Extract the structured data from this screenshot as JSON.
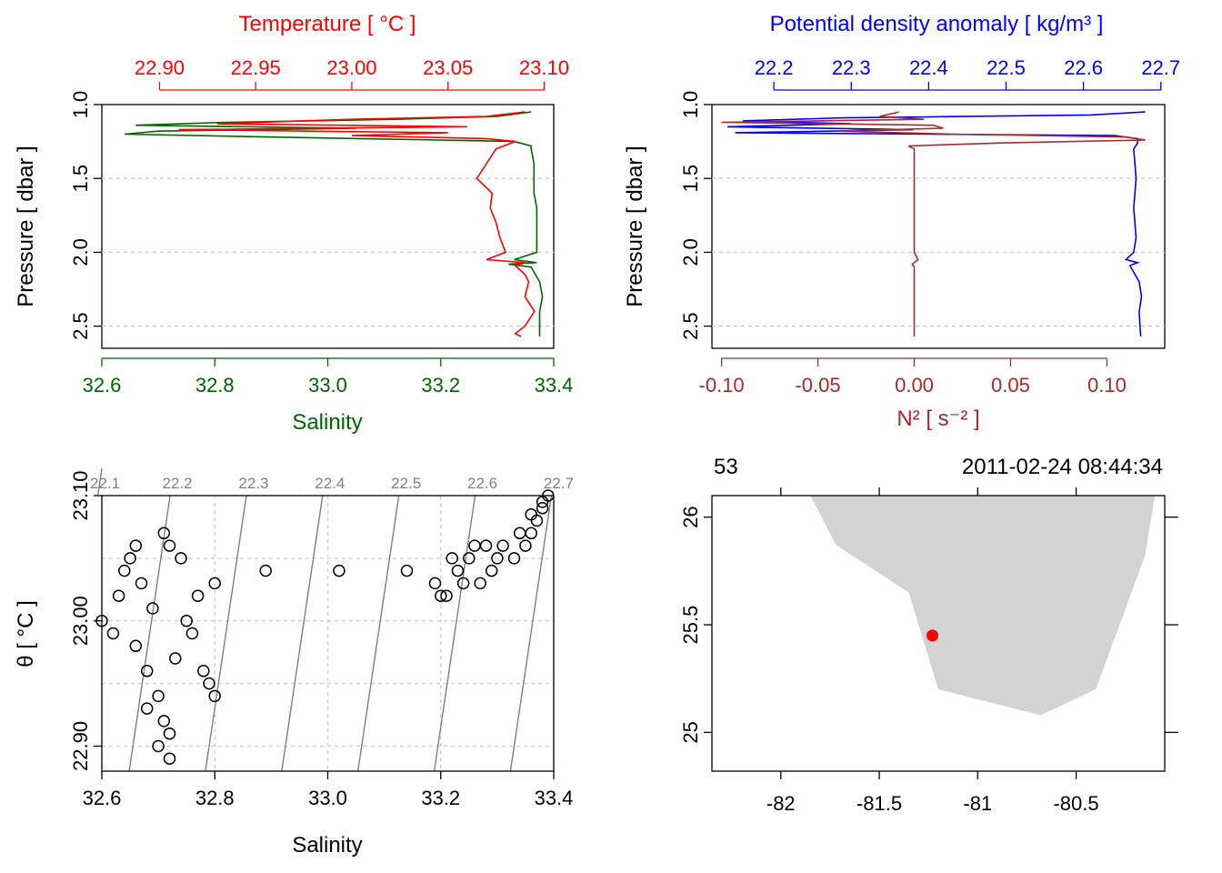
{
  "colors": {
    "salinity": "#006400",
    "temperature": "#ff0000",
    "density": "#0000ff",
    "n2": "#a52a2a",
    "axis": "#000000",
    "grid": "#cccccc",
    "isopycnal": "#808080",
    "land": "#d3d3d3",
    "station": "#ff0000"
  },
  "chart_data": [
    {
      "type": "line",
      "panel": "profile-ts",
      "x_bottom": {
        "label": "Salinity",
        "range": [
          32.6,
          33.4
        ],
        "ticks": [
          "32.6",
          "32.8",
          "33.0",
          "33.2",
          "33.4"
        ]
      },
      "x_top": {
        "label": "Temperature [ °C ]",
        "range": [
          22.87,
          23.105
        ],
        "ticks": [
          "22.90",
          "22.95",
          "23.00",
          "23.05",
          "23.10"
        ]
      },
      "y": {
        "label": "Pressure [ dbar ]",
        "range": [
          2.65,
          1.0
        ],
        "ticks": [
          "1.0",
          "1.5",
          "2.0",
          "2.5"
        ]
      },
      "series": [
        {
          "name": "Salinity",
          "axis": "bottom",
          "pressure": [
            1.05,
            1.08,
            1.1,
            1.12,
            1.14,
            1.16,
            1.18,
            1.2,
            1.22,
            1.24,
            1.25,
            1.28,
            1.3,
            1.4,
            1.5,
            1.6,
            1.7,
            1.8,
            1.9,
            2.0,
            2.05,
            2.07,
            2.08,
            2.1,
            2.2,
            2.3,
            2.4,
            2.5,
            2.57
          ],
          "values": [
            33.36,
            33.3,
            33.12,
            32.82,
            32.66,
            33.05,
            32.7,
            32.64,
            32.9,
            33.2,
            33.33,
            33.36,
            33.36,
            33.365,
            33.365,
            33.365,
            33.37,
            33.37,
            33.37,
            33.37,
            33.33,
            33.37,
            33.32,
            33.36,
            33.375,
            33.38,
            33.375,
            33.375,
            33.375
          ]
        },
        {
          "name": "Temperature",
          "axis": "top",
          "pressure": [
            1.05,
            1.08,
            1.1,
            1.13,
            1.15,
            1.17,
            1.19,
            1.21,
            1.23,
            1.25,
            1.3,
            1.4,
            1.5,
            1.6,
            1.7,
            1.8,
            1.9,
            2.0,
            2.05,
            2.07,
            2.09,
            2.15,
            2.2,
            2.3,
            2.4,
            2.5,
            2.55,
            2.57
          ],
          "values": [
            23.09,
            23.07,
            23.0,
            22.93,
            23.06,
            22.91,
            23.05,
            23.0,
            23.07,
            23.085,
            23.075,
            23.07,
            23.065,
            23.073,
            23.072,
            23.075,
            23.077,
            23.08,
            23.07,
            23.09,
            23.085,
            23.09,
            23.092,
            23.09,
            23.095,
            23.09,
            23.085,
            23.088
          ]
        }
      ]
    },
    {
      "type": "line",
      "panel": "profile-density",
      "x_bottom": {
        "label": "N² [ s⁻² ]",
        "range": [
          -0.105,
          0.13
        ],
        "ticks": [
          "-0.10",
          "-0.05",
          "0.00",
          "0.05",
          "0.10"
        ]
      },
      "x_top": {
        "label": "Potential density anomaly [ kg/m³ ]",
        "range": [
          22.12,
          22.705
        ],
        "ticks": [
          "22.2",
          "22.3",
          "22.4",
          "22.5",
          "22.6",
          "22.7"
        ]
      },
      "y": {
        "label": "Pressure [ dbar ]",
        "range": [
          2.65,
          1.0
        ],
        "ticks": [
          "1.0",
          "1.5",
          "2.0",
          "2.5"
        ]
      },
      "series": [
        {
          "name": "Potential density anomaly",
          "axis": "top",
          "pressure": [
            1.05,
            1.07,
            1.09,
            1.11,
            1.13,
            1.15,
            1.17,
            1.19,
            1.21,
            1.23,
            1.26,
            1.3,
            1.5,
            1.7,
            1.9,
            2.0,
            2.05,
            2.07,
            2.09,
            2.2,
            2.3,
            2.4,
            2.5,
            2.57
          ],
          "values": [
            22.68,
            22.61,
            22.29,
            22.16,
            22.3,
            22.14,
            22.38,
            22.15,
            22.64,
            22.67,
            22.67,
            22.665,
            22.668,
            22.665,
            22.668,
            22.665,
            22.655,
            22.67,
            22.66,
            22.672,
            22.675,
            22.672,
            22.673,
            22.674
          ]
        },
        {
          "name": "N²",
          "axis": "bottom",
          "pressure": [
            1.05,
            1.08,
            1.1,
            1.12,
            1.14,
            1.16,
            1.18,
            1.2,
            1.22,
            1.24,
            1.26,
            1.28,
            1.3,
            1.32,
            1.5,
            2.0,
            2.05,
            2.08,
            2.1,
            2.5,
            2.57
          ],
          "values": [
            -0.008,
            -0.018,
            0.005,
            -0.1,
            0.01,
            0.015,
            -0.04,
            0.02,
            0.11,
            0.12,
            0.045,
            -0.003,
            0.0,
            0.0,
            0.0,
            0.0,
            0.002,
            -0.001,
            0.0,
            0.0,
            0.0
          ]
        }
      ]
    },
    {
      "type": "scatter",
      "panel": "ts-diagram",
      "x": {
        "label": "Salinity",
        "range": [
          32.6,
          33.4
        ],
        "ticks": [
          "32.6",
          "32.8",
          "33.0",
          "33.2",
          "33.4"
        ]
      },
      "y": {
        "label": "θ [ °C ]",
        "range": [
          22.88,
          23.1
        ],
        "ticks": [
          "22.90",
          "23.00",
          "23.10"
        ]
      },
      "isopycnals": [
        "22.1",
        "22.2",
        "22.3",
        "22.4",
        "22.5",
        "22.6",
        "22.7"
      ],
      "points": [
        [
          32.89,
          23.04
        ],
        [
          33.02,
          23.04
        ],
        [
          33.14,
          23.04
        ],
        [
          32.8,
          23.03
        ],
        [
          32.8,
          22.94
        ],
        [
          32.79,
          22.95
        ],
        [
          32.78,
          22.96
        ],
        [
          32.72,
          22.89
        ],
        [
          32.7,
          22.9
        ],
        [
          32.72,
          22.91
        ],
        [
          32.6,
          23.0
        ],
        [
          32.66,
          22.98
        ],
        [
          32.68,
          22.96
        ],
        [
          32.75,
          23.0
        ],
        [
          32.77,
          23.02
        ],
        [
          32.71,
          23.07
        ],
        [
          32.72,
          23.06
        ],
        [
          32.65,
          23.05
        ],
        [
          32.67,
          23.03
        ],
        [
          32.7,
          22.94
        ],
        [
          32.73,
          22.97
        ],
        [
          32.62,
          22.99
        ],
        [
          32.69,
          23.01
        ],
        [
          32.64,
          23.04
        ],
        [
          32.74,
          23.05
        ],
        [
          32.68,
          22.93
        ],
        [
          32.71,
          22.92
        ],
        [
          32.76,
          22.99
        ],
        [
          32.63,
          23.02
        ],
        [
          32.66,
          23.06
        ],
        [
          33.19,
          23.03
        ],
        [
          33.21,
          23.02
        ],
        [
          33.23,
          23.04
        ],
        [
          33.25,
          23.05
        ],
        [
          33.27,
          23.03
        ],
        [
          33.29,
          23.04
        ],
        [
          33.22,
          23.05
        ],
        [
          33.26,
          23.06
        ],
        [
          33.31,
          23.06
        ],
        [
          33.33,
          23.05
        ],
        [
          33.35,
          23.06
        ],
        [
          33.36,
          23.07
        ],
        [
          33.37,
          23.08
        ],
        [
          33.38,
          23.09
        ],
        [
          33.39,
          23.1
        ],
        [
          33.34,
          23.07
        ],
        [
          33.3,
          23.05
        ],
        [
          33.28,
          23.06
        ],
        [
          33.24,
          23.03
        ],
        [
          33.2,
          23.02
        ],
        [
          33.36,
          23.085
        ],
        [
          33.38,
          23.095
        ]
      ]
    },
    {
      "type": "map",
      "panel": "station-map",
      "station": "53",
      "datetime": "2011-02-24 08:44:34",
      "lon": {
        "range": [
          -82.35,
          -80.05
        ],
        "ticks": [
          "-82",
          "-81.5",
          "-81",
          "-80.5"
        ]
      },
      "lat": {
        "range": [
          24.82,
          26.1
        ],
        "ticks": [
          "25",
          "25.5",
          "26"
        ]
      },
      "coastline": [
        [
          -81.85,
          26.1
        ],
        [
          -81.72,
          25.87
        ],
        [
          -81.35,
          25.65
        ],
        [
          -81.2,
          25.2
        ],
        [
          -80.68,
          25.08
        ],
        [
          -80.4,
          25.2
        ],
        [
          -80.15,
          25.82
        ],
        [
          -80.1,
          26.1
        ]
      ],
      "station_point": [
        -81.23,
        25.45
      ]
    }
  ]
}
